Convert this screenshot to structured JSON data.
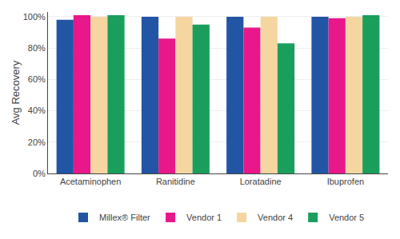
{
  "chart_data": {
    "type": "bar",
    "categories": [
      "Acetaminophen",
      "Ranitidine",
      "Loratadine",
      "Ibuprofen"
    ],
    "series": [
      {
        "name": "Millex® Filter",
        "color": "#2255a4",
        "values": [
          98,
          100,
          100,
          100
        ]
      },
      {
        "name": "Vendor 1",
        "color": "#e8188a",
        "values": [
          101,
          86,
          93,
          99
        ]
      },
      {
        "name": "Vendor 4",
        "color": "#f5d5a0",
        "values": [
          100,
          100,
          100,
          100
        ]
      },
      {
        "name": "Vendor 5",
        "color": "#1a9e5c",
        "values": [
          101,
          95,
          83,
          101
        ]
      }
    ],
    "ylabel": "Avg Recovery",
    "ylim": [
      0,
      103
    ],
    "yticks": [
      {
        "value": 0,
        "label": "0%"
      },
      {
        "value": 20,
        "label": "20%"
      },
      {
        "value": 40,
        "label": "40%"
      },
      {
        "value": 60,
        "label": "60%"
      },
      {
        "value": 80,
        "label": "80%"
      },
      {
        "value": 100,
        "label": "100%"
      }
    ],
    "grid": true,
    "legend": "bottom"
  }
}
